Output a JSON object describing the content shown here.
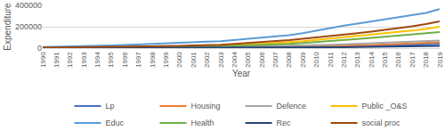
{
  "chart_data": {
    "type": "line",
    "x_label": "Year",
    "y_label": "Expenditure",
    "categories": [
      "1990",
      "1991",
      "1992",
      "1993",
      "1994",
      "1995",
      "1996",
      "1997",
      "1998",
      "1999",
      "2000",
      "2001",
      "2002",
      "2003",
      "2004",
      "2005",
      "2006",
      "2007",
      "2008",
      "2009",
      "2010",
      "2011",
      "2012",
      "2013",
      "2014",
      "2015",
      "2016",
      "2017",
      "2018",
      "2019"
    ],
    "ylim": [
      0,
      400000
    ],
    "yticks": [
      0,
      200000,
      400000
    ],
    "grid": true,
    "legend": "bottom",
    "series": [
      {
        "name": "Lp",
        "color": "#4472c4",
        "values": [
          1000,
          1200,
          1400,
          1600,
          1800,
          2000,
          2300,
          2600,
          3000,
          3400,
          3800,
          4200,
          4700,
          5300,
          6000,
          7000,
          8000,
          9000,
          10000,
          11500,
          13000,
          15000,
          17000,
          19500,
          22000,
          25000,
          28000,
          31000,
          35000,
          40000
        ]
      },
      {
        "name": "Housing",
        "color": "#ed7d31",
        "values": [
          1500,
          1700,
          1900,
          2200,
          2500,
          2800,
          3200,
          3600,
          4000,
          4500,
          5000,
          5600,
          6300,
          7200,
          8200,
          9500,
          11000,
          12500,
          14000,
          16000,
          18500,
          21000,
          24000,
          27000,
          30000,
          34000,
          38000,
          43000,
          48000,
          55000
        ]
      },
      {
        "name": "Defence",
        "color": "#a5a5a5",
        "values": [
          2000,
          2300,
          2600,
          3000,
          3500,
          4000,
          4500,
          5000,
          5500,
          6000,
          7000,
          8000,
          9000,
          10500,
          12000,
          14000,
          16000,
          18000,
          20000,
          23000,
          27000,
          31000,
          35000,
          40000,
          45000,
          50000,
          55000,
          60000,
          65000,
          70000
        ]
      },
      {
        "name": "Public _O&S",
        "color": "#ffc000",
        "values": [
          3000,
          3500,
          4000,
          5000,
          6000,
          7000,
          8000,
          9000,
          10000,
          12000,
          14000,
          16000,
          19000,
          23000,
          28000,
          34000,
          40000,
          47000,
          55000,
          65000,
          78000,
          90000,
          100000,
          112000,
          125000,
          138000,
          150000,
          165000,
          180000,
          200000
        ]
      },
      {
        "name": "Educ",
        "color": "#5b9bd5",
        "values": [
          10000,
          12000,
          14000,
          17000,
          20000,
          25000,
          30000,
          36000,
          42000,
          46000,
          50000,
          55000,
          60000,
          65000,
          75000,
          85000,
          95000,
          105000,
          120000,
          140000,
          165000,
          185000,
          210000,
          230000,
          250000,
          265000,
          285000,
          305000,
          330000,
          365000
        ]
      },
      {
        "name": "Health",
        "color": "#70ad47",
        "values": [
          2000,
          2500,
          3000,
          3500,
          4000,
          5000,
          6000,
          7000,
          8000,
          9000,
          10000,
          12000,
          14000,
          17000,
          21000,
          25000,
          30000,
          35000,
          40000,
          48000,
          56000,
          65000,
          75000,
          85000,
          95000,
          105000,
          115000,
          125000,
          138000,
          150000
        ]
      },
      {
        "name": "Rec",
        "color": "#264478",
        "values": [
          500,
          600,
          700,
          800,
          900,
          1000,
          1100,
          1300,
          1500,
          1700,
          1900,
          2100,
          2400,
          2700,
          3100,
          3500,
          4000,
          4600,
          5200,
          6000,
          7000,
          8000,
          9000,
          10000,
          11000,
          12500,
          14000,
          15500,
          17500,
          20000
        ]
      },
      {
        "name": "social proc",
        "color": "#9e480e",
        "values": [
          5000,
          6000,
          7000,
          8000,
          9000,
          11000,
          13000,
          15000,
          17000,
          19000,
          21000,
          24000,
          27000,
          32000,
          40000,
          48000,
          56000,
          64000,
          75000,
          88000,
          100000,
          112000,
          125000,
          140000,
          155000,
          170000,
          185000,
          205000,
          225000,
          250000
        ]
      }
    ]
  }
}
